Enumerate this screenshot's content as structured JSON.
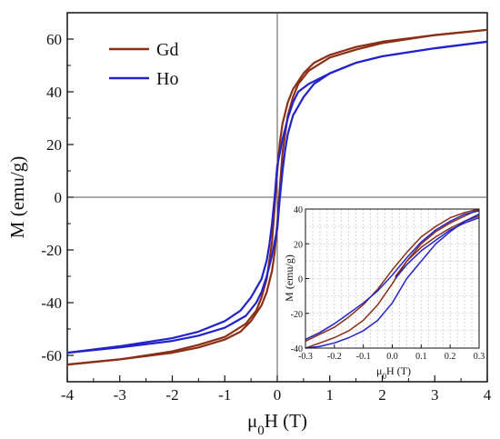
{
  "chart_data": [
    {
      "type": "line",
      "xlabel": "μ0H (T)",
      "ylabel": "M (emu/g)",
      "xlim": [
        -4,
        4
      ],
      "ylim": [
        -70,
        70
      ],
      "xticks": [
        -4,
        -3,
        -2,
        -1,
        0,
        1,
        2,
        3,
        4
      ],
      "xtick_labels": [
        "-4",
        "-3",
        "-2",
        "-1",
        "0",
        "1",
        "2",
        "3",
        "4"
      ],
      "yticks": [
        -60,
        -40,
        -20,
        0,
        20,
        40,
        60
      ],
      "ytick_labels": [
        "-60",
        "-40",
        "-20",
        "0",
        "20",
        "40",
        "60"
      ],
      "legend_position": "top-left",
      "grid": false,
      "series": [
        {
          "name": "Gd",
          "color": "#8B2E16",
          "branches": [
            {
              "x": [
                -4,
                -3,
                -2,
                -1.5,
                -1,
                -0.6,
                -0.4,
                -0.3,
                -0.2,
                -0.1,
                -0.05,
                0,
                0.05,
                0.1,
                0.2,
                0.3,
                0.5,
                0.7,
                1,
                1.5,
                2,
                3,
                4
              ],
              "y": [
                -63.5,
                -61.5,
                -58.5,
                -56,
                -53,
                -48,
                -43,
                -38,
                -31,
                -17,
                -4,
                10,
                21,
                28,
                36,
                41,
                47,
                51,
                54,
                57,
                59,
                61.5,
                63.5
              ]
            },
            {
              "x": [
                4,
                3,
                2,
                1.5,
                1,
                0.6,
                0.4,
                0.3,
                0.2,
                0.1,
                0.05,
                0,
                -0.05,
                -0.1,
                -0.2,
                -0.3,
                -0.5,
                -0.7,
                -1,
                -1.5,
                -2,
                -3,
                -4
              ],
              "y": [
                63.5,
                61.5,
                58.5,
                56,
                53,
                48,
                43,
                38,
                31,
                17,
                4,
                -10,
                -21,
                -28,
                -36,
                -41,
                -47,
                -51,
                -54,
                -57,
                -59,
                -61.5,
                -63.5
              ]
            }
          ]
        },
        {
          "name": "Ho",
          "color": "#2222CC",
          "branches": [
            {
              "x": [
                -4,
                -3,
                -2,
                -1.5,
                -1,
                -0.6,
                -0.4,
                -0.3,
                -0.2,
                -0.1,
                0,
                0.05,
                0.1,
                0.15,
                0.2,
                0.3,
                0.5,
                0.7,
                1,
                1.5,
                2,
                3,
                4
              ],
              "y": [
                -59,
                -57,
                -54.5,
                -52.5,
                -49.5,
                -45,
                -40,
                -36,
                -30,
                -22,
                -12,
                0,
                10,
                18,
                24,
                31,
                38,
                43,
                47,
                51,
                53.5,
                56.5,
                59
              ]
            },
            {
              "x": [
                4,
                3,
                2,
                1.5,
                1,
                0.6,
                0.4,
                0.3,
                0.2,
                0.1,
                0,
                -0.05,
                -0.1,
                -0.15,
                -0.2,
                -0.3,
                -0.5,
                -0.7,
                -1,
                -1.5,
                -2,
                -3,
                -4
              ],
              "y": [
                59,
                56.5,
                53.5,
                51,
                47,
                43,
                40,
                36,
                30,
                22,
                12,
                0,
                -10,
                -18,
                -24,
                -31,
                -38,
                -43,
                -47,
                -51,
                -53.5,
                -56.5,
                -59
              ]
            }
          ]
        }
      ]
    },
    {
      "type": "line",
      "xlabel": "μ0H (T)",
      "ylabel": "M (emu/g)",
      "xlim": [
        -0.3,
        0.3
      ],
      "ylim": [
        -40,
        40
      ],
      "xticks": [
        -0.3,
        -0.2,
        -0.1,
        0.0,
        0.1,
        0.2,
        0.3
      ],
      "xtick_labels": [
        "-0.3",
        "-0.2",
        "-0.1",
        "0.0",
        "0.1",
        "0.2",
        "0.3"
      ],
      "yticks": [
        -40,
        -20,
        0,
        20,
        40
      ],
      "ytick_labels": [
        "-40",
        "-20",
        "0",
        "20",
        "40"
      ],
      "grid": true,
      "series": [
        {
          "name": "Gd",
          "color": "#8B2E16",
          "branches": [
            {
              "x": [
                -0.3,
                -0.25,
                -0.2,
                -0.15,
                -0.1,
                -0.05,
                0,
                0.05,
                0.1,
                0.15,
                0.2,
                0.25,
                0.3
              ],
              "y": [
                -36,
                -32,
                -28,
                -22,
                -15,
                -6,
                5,
                15,
                24,
                30,
                35,
                38,
                40
              ]
            },
            {
              "x": [
                0.3,
                0.25,
                0.2,
                0.15,
                0.1,
                0.05,
                0,
                -0.05,
                -0.1,
                -0.15,
                -0.2,
                -0.25,
                -0.3
              ],
              "y": [
                40,
                36,
                32,
                27,
                20,
                10,
                -3,
                -15,
                -24,
                -30,
                -34,
                -37,
                -40
              ]
            },
            {
              "x": [
                0.01,
                0.05,
                0.1,
                0.15,
                0.2,
                0.25,
                0.3
              ],
              "y": [
                1,
                10,
                18,
                24,
                29,
                33,
                36
              ]
            }
          ]
        },
        {
          "name": "Ho",
          "color": "#2222CC",
          "branches": [
            {
              "x": [
                -0.3,
                -0.25,
                -0.2,
                -0.15,
                -0.1,
                -0.05,
                0,
                0.05,
                0.1,
                0.15,
                0.2,
                0.25,
                0.3
              ],
              "y": [
                -35,
                -31,
                -26,
                -20,
                -14,
                -7,
                2,
                12,
                21,
                28,
                33,
                37,
                39
              ]
            },
            {
              "x": [
                0.3,
                0.25,
                0.2,
                0.15,
                0.1,
                0.05,
                0,
                -0.05,
                -0.1,
                -0.15,
                -0.2,
                -0.25,
                -0.3
              ],
              "y": [
                37,
                33,
                27,
                20,
                10,
                0,
                -14,
                -24,
                -30,
                -34,
                -37,
                -39,
                -40
              ]
            },
            {
              "x": [
                0.01,
                0.05,
                0.1,
                0.15,
                0.2,
                0.25,
                0.3
              ],
              "y": [
                0,
                8,
                16,
                22,
                28,
                32,
                35
              ]
            }
          ]
        }
      ]
    }
  ]
}
